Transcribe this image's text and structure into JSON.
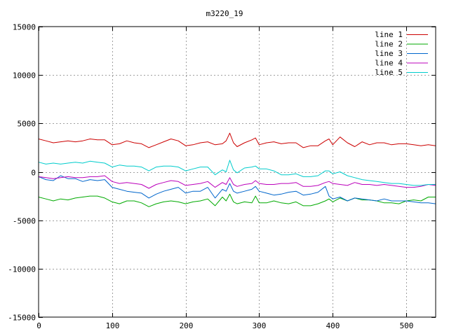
{
  "chart_data": {
    "type": "line",
    "title": "m3220_19",
    "xlabel": "",
    "ylabel": "",
    "xlim": [
      0,
      540
    ],
    "ylim": [
      -15000,
      15000
    ],
    "x_ticks": [
      0,
      100,
      200,
      300,
      400,
      500
    ],
    "y_ticks": [
      -15000,
      -10000,
      -5000,
      0,
      5000,
      10000,
      15000
    ],
    "grid": true,
    "legend_position": "top-right",
    "series_x": [
      0,
      10,
      20,
      30,
      40,
      50,
      60,
      70,
      80,
      90,
      100,
      110,
      120,
      130,
      140,
      150,
      160,
      170,
      180,
      190,
      200,
      210,
      220,
      230,
      240,
      250,
      255,
      260,
      265,
      270,
      280,
      290,
      295,
      300,
      310,
      320,
      330,
      340,
      350,
      360,
      370,
      380,
      390,
      395,
      400,
      410,
      420,
      430,
      440,
      450,
      460,
      470,
      480,
      490,
      500,
      510,
      520,
      530,
      540
    ],
    "series": [
      {
        "name": "line 1",
        "color": "#cc0000",
        "values": [
          3400,
          3200,
          3000,
          3100,
          3200,
          3100,
          3200,
          3400,
          3300,
          3300,
          2800,
          2900,
          3200,
          3000,
          2900,
          2500,
          2800,
          3100,
          3400,
          3200,
          2700,
          2800,
          3000,
          3100,
          2800,
          2900,
          3200,
          4000,
          3000,
          2600,
          3000,
          3300,
          3500,
          2800,
          3000,
          3100,
          2900,
          3000,
          3000,
          2500,
          2700,
          2700,
          3200,
          3400,
          2800,
          3600,
          3000,
          2600,
          3100,
          2800,
          3000,
          3000,
          2800,
          2900,
          2900,
          2800,
          2700,
          2800,
          2700
        ]
      },
      {
        "name": "line 2",
        "color": "#00aa00",
        "values": [
          -2600,
          -2800,
          -3000,
          -2800,
          -2900,
          -2700,
          -2600,
          -2500,
          -2500,
          -2700,
          -3100,
          -3300,
          -3000,
          -3000,
          -3200,
          -3600,
          -3300,
          -3100,
          -3000,
          -3100,
          -3300,
          -3100,
          -3000,
          -2800,
          -3500,
          -2600,
          -3000,
          -2300,
          -3100,
          -3300,
          -3100,
          -3200,
          -2500,
          -3200,
          -3200,
          -3000,
          -3200,
          -3300,
          -3100,
          -3500,
          -3500,
          -3300,
          -3000,
          -2800,
          -3100,
          -2700,
          -3000,
          -2700,
          -2900,
          -2900,
          -3000,
          -3200,
          -3200,
          -3300,
          -3000,
          -2900,
          -3000,
          -2600,
          -2600
        ]
      },
      {
        "name": "line 3",
        "color": "#0066cc",
        "values": [
          -500,
          -800,
          -900,
          -400,
          -700,
          -700,
          -1000,
          -800,
          -900,
          -800,
          -1600,
          -1800,
          -2000,
          -2100,
          -2200,
          -2700,
          -2300,
          -2000,
          -1800,
          -1600,
          -2200,
          -2000,
          -2000,
          -1600,
          -2700,
          -1800,
          -2000,
          -1200,
          -2000,
          -2200,
          -2000,
          -1800,
          -1500,
          -2000,
          -2200,
          -2400,
          -2300,
          -2100,
          -2000,
          -2400,
          -2300,
          -2100,
          -1500,
          -2500,
          -2800,
          -2600,
          -3000,
          -2700,
          -2800,
          -2900,
          -3000,
          -2800,
          -3000,
          -3000,
          -3000,
          -3100,
          -3200,
          -3200,
          -3300
        ]
      },
      {
        "name": "line 4",
        "color": "#bb00bb",
        "values": [
          -500,
          -600,
          -700,
          -600,
          -500,
          -600,
          -600,
          -500,
          -500,
          -400,
          -1000,
          -1200,
          -1100,
          -1200,
          -1300,
          -1700,
          -1300,
          -1100,
          -900,
          -1000,
          -1400,
          -1300,
          -1200,
          -1000,
          -1600,
          -1100,
          -1300,
          -600,
          -1300,
          -1500,
          -1300,
          -1200,
          -900,
          -1200,
          -1300,
          -1300,
          -1200,
          -1200,
          -1100,
          -1500,
          -1500,
          -1400,
          -1100,
          -1000,
          -1200,
          -1300,
          -1400,
          -1100,
          -1300,
          -1300,
          -1400,
          -1300,
          -1400,
          -1500,
          -1600,
          -1600,
          -1500,
          -1300,
          -1400
        ]
      },
      {
        "name": "line 5",
        "color": "#00cccc",
        "values": [
          1000,
          800,
          900,
          800,
          900,
          1000,
          900,
          1100,
          1000,
          900,
          500,
          700,
          600,
          600,
          500,
          100,
          500,
          600,
          600,
          500,
          100,
          300,
          500,
          500,
          -300,
          200,
          0,
          1200,
          200,
          -100,
          400,
          500,
          600,
          300,
          300,
          100,
          -300,
          -300,
          -200,
          -500,
          -500,
          -400,
          100,
          100,
          -200,
          0,
          -400,
          -600,
          -800,
          -900,
          -1000,
          -1100,
          -1200,
          -1200,
          -1300,
          -1400,
          -1400,
          -1300,
          -1300
        ]
      }
    ]
  }
}
